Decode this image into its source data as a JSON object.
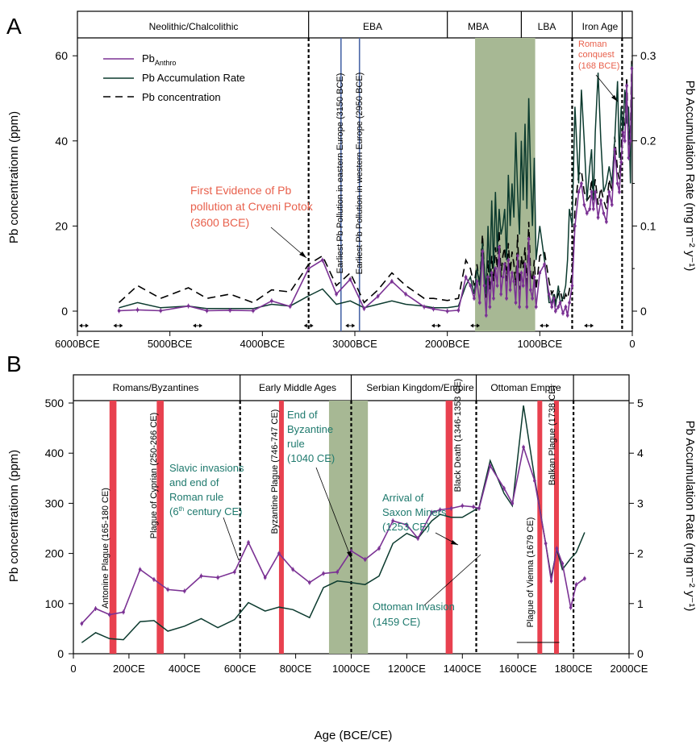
{
  "colors": {
    "pb_anthro": "#7b3294",
    "accumulation": "#0b3a2e",
    "concentration": "#000000",
    "red_band": "#e8414f",
    "green_band": "#a7b894",
    "annotation_orange": "#e8604c",
    "annotation_teal": "#1f7a6e",
    "blue_line": "#4a67a8"
  },
  "panel_a": {
    "letter": "A",
    "periods": [
      "Neolithic/Chalcolithic",
      "EBA",
      "MBA",
      "LBA",
      "Iron Age"
    ],
    "ylabel_left": "Pb concentrationn (ppm)",
    "ylabel_right": "Pb Accumulation Rate (mg m⁻² y⁻¹)",
    "y_ticks_left": [
      "0",
      "20",
      "40",
      "60"
    ],
    "y_ticks_right": [
      "0",
      "0.1",
      "0.2",
      "0.3"
    ],
    "x_ticks": [
      "6000BCE",
      "5000BCE",
      "4000BCE",
      "3000BCE",
      "2000BCE",
      "1000BCE",
      "0"
    ],
    "legend": {
      "pb_anthro": "Pb",
      "pb_anthro_sub": "Anthro",
      "accumulation": "Pb Accumulation Rate",
      "concentration": "Pb concentration"
    },
    "annotations": {
      "first_evidence": [
        "First Evidence of Pb",
        "pollution at Crveni Potok",
        "(3600 BCE)"
      ],
      "roman": [
        "Roman",
        "conquest",
        "(168 BCE)"
      ],
      "eastern": "Earliest Pb Pollution in eastern Europe (3150 BCE)",
      "western": "Earliest Pb Pollution in western Europe (2950 BCE)"
    }
  },
  "panel_b": {
    "letter": "B",
    "periods": [
      "Romans/Byzantines",
      "Early Middle Ages",
      "Serbian Kingdom/Empire",
      "Ottoman Empire"
    ],
    "ylabel_left": "Pb concentrationn (ppm)",
    "ylabel_right": "Pb Accumulation Rate (mg m⁻² y⁻¹)",
    "xlabel": "Age (BCE/CE)",
    "y_ticks_left": [
      "0",
      "100",
      "200",
      "300",
      "400",
      "500"
    ],
    "y_ticks_right": [
      "0",
      "1",
      "2",
      "3",
      "4",
      "5"
    ],
    "x_ticks": [
      "0",
      "200CE",
      "400CE",
      "600CE",
      "800CE",
      "1000CE",
      "1200CE",
      "1400CE",
      "1600CE",
      "1800CE",
      "2000CE"
    ],
    "plague_labels": {
      "antonine": "Antonine Plague (165-180 CE)",
      "cyprian": "Plague of Cyprian (250-266 CE)",
      "byzantine": "Byzantine Plague (746-747 CE)",
      "black_death": "Black Death (1346-1353 CE)",
      "vienna": "Plague of Vienna (1679 CE)",
      "balkan": "Balkan Plague (1738 CE)"
    },
    "annotations": {
      "slavic": [
        "Slavic invasions",
        "and end of",
        "Roman rule",
        "century CE)"
      ],
      "slavic_paren": "(6",
      "slavic_sup": "th",
      "byzantine_end": [
        "End of",
        "Byzantine",
        "rule",
        "(1040 CE)"
      ],
      "saxon": [
        "Arrival of",
        "Saxon Miners",
        "(1253 CE)"
      ],
      "ottoman": [
        "Ottoman Invasion",
        "(1459 CE)"
      ]
    }
  },
  "chart_data": [
    {
      "type": "line",
      "panel": "A",
      "x_unit": "year (negative = BCE)",
      "xlim": [
        -6000,
        0
      ],
      "ylim_left": [
        -5,
        65
      ],
      "ylim_right": [
        -0.025,
        0.325
      ],
      "period_boundaries": [
        -3500,
        -2000,
        -1200,
        -650,
        -110
      ],
      "vertical_markers": {
        "dashed": [
          -3500,
          -650,
          -110
        ],
        "blue_solid": [
          -3150,
          -2950
        ]
      },
      "shaded_interval": [
        -1700,
        -1050
      ],
      "series": [
        {
          "name": "Pb",
          "axis": "left",
          "x": [
            -5550,
            -5350,
            -5100,
            -4800,
            -4600,
            -4350,
            -4100,
            -3900,
            -3700,
            -3500,
            -3350,
            -3200,
            -3050,
            -2900,
            -2750,
            -2600,
            -2450,
            -2250,
            -2150,
            -2000,
            -1880,
            -1800,
            -1750,
            -1710,
            -1680,
            -1650,
            -1620,
            -1600,
            -1580,
            -1560,
            -1540,
            -1520,
            -1500,
            -1480,
            -1460,
            -1440,
            -1420,
            -1400,
            -1380,
            -1360,
            -1340,
            -1320,
            -1300,
            -1280,
            -1260,
            -1240,
            -1220,
            -1200,
            -1180,
            -1160,
            -1140,
            -1120,
            -1100,
            -1080,
            -1060,
            -1040,
            -1000,
            -950,
            -900,
            -870,
            -850,
            -830,
            -800,
            -780,
            -750,
            -720,
            -700,
            -680,
            -650,
            -620,
            -580,
            -550,
            -520,
            -490,
            -460,
            -440,
            -420,
            -400,
            -370,
            -340,
            -310,
            -280,
            -250,
            -220,
            -190,
            -160,
            -140,
            -120,
            -100,
            -80,
            -60,
            -40,
            -20,
            -5
          ],
          "values": [
            0.1,
            0.3,
            0.1,
            1.2,
            0.1,
            0.2,
            0.1,
            2.4,
            1.1,
            10,
            12,
            4,
            7.5,
            0.6,
            3.5,
            7,
            4,
            1,
            0.5,
            0,
            0.2,
            8,
            6,
            3,
            7,
            2,
            14,
            6,
            -1,
            8,
            1,
            9,
            3,
            10,
            6,
            15,
            4,
            8,
            11,
            3,
            12,
            5,
            9,
            7,
            2,
            13,
            1,
            9,
            6,
            11,
            1,
            17,
            5,
            3,
            8,
            1,
            9,
            11,
            4,
            1,
            3,
            0,
            1,
            2,
            -0.5,
            1,
            -1,
            2,
            6,
            20,
            28,
            30,
            25,
            23,
            24,
            28,
            24,
            28,
            22,
            26,
            23,
            21,
            28,
            25,
            38,
            30,
            28,
            35,
            42,
            40,
            53,
            36,
            40,
            57
          ]
        },
        {
          "name": "Pb Accumulation Rate",
          "axis": "right",
          "x": [
            -5550,
            -5350,
            -5100,
            -4800,
            -4600,
            -4350,
            -4100,
            -3900,
            -3700,
            -3500,
            -3350,
            -3200,
            -3050,
            -2900,
            -2750,
            -2600,
            -2450,
            -2250,
            -2150,
            -2000,
            -1880,
            -1800,
            -1750,
            -1710,
            -1680,
            -1650,
            -1620,
            -1600,
            -1580,
            -1560,
            -1540,
            -1520,
            -1500,
            -1480,
            -1460,
            -1440,
            -1420,
            -1400,
            -1380,
            -1360,
            -1340,
            -1320,
            -1300,
            -1280,
            -1260,
            -1240,
            -1220,
            -1200,
            -1180,
            -1160,
            -1140,
            -1120,
            -1100,
            -1080,
            -1060,
            -1040,
            -1000,
            -950,
            -900,
            -870,
            -850,
            -830,
            -800,
            -780,
            -750,
            -720,
            -700,
            -680,
            -650,
            -620,
            -580,
            -550,
            -520,
            -490,
            -460,
            -440,
            -420,
            -400,
            -370,
            -340,
            -310,
            -280,
            -250,
            -220,
            -190,
            -160,
            -140,
            -120,
            -100,
            -80,
            -60,
            -40,
            -20,
            -5
          ],
          "values": [
            0.004,
            0.01,
            0.004,
            0.006,
            0.003,
            0.003,
            0.003,
            0.008,
            0.006,
            0.018,
            0.026,
            0.008,
            0.012,
            0.004,
            0.008,
            0.012,
            0.008,
            0.006,
            0.004,
            0.004,
            0.006,
            0.03,
            0.04,
            0.02,
            0.05,
            0.03,
            0.08,
            0.05,
            0.02,
            0.1,
            0.04,
            0.13,
            0.05,
            0.14,
            0.07,
            0.12,
            0.09,
            0.1,
            0.12,
            0.06,
            0.16,
            0.1,
            0.15,
            0.11,
            0.21,
            0.14,
            0.09,
            0.2,
            0.13,
            0.22,
            0.12,
            0.25,
            0.16,
            0.1,
            0.18,
            0.06,
            0.1,
            0.06,
            0.01,
            0.01,
            0.02,
            0.005,
            0.03,
            0.01,
            0.015,
            0.03,
            0.06,
            0.12,
            0.1,
            0.24,
            0.15,
            0.26,
            0.2,
            0.13,
            0.17,
            0.19,
            0.13,
            0.21,
            0.28,
            0.2,
            0.14,
            0.15,
            0.17,
            0.15,
            0.2,
            0.27,
            0.18,
            0.24,
            0.21,
            0.26,
            0.22,
            0.24,
            0.15,
            0.29
          ]
        },
        {
          "name": "Pb concentration",
          "axis": "left",
          "x": [
            -5550,
            -5350,
            -5100,
            -4800,
            -4600,
            -4350,
            -4100,
            -3900,
            -3700,
            -3500,
            -3350,
            -3200,
            -3050,
            -2900,
            -2750,
            -2600,
            -2450,
            -2250,
            -2150,
            -2000,
            -1880,
            -1800,
            -1750,
            -1710,
            -1680,
            -1650,
            -1620,
            -1600,
            -1580,
            -1560,
            -1540,
            -1520,
            -1500,
            -1480,
            -1460,
            -1440,
            -1420,
            -1400,
            -1380,
            -1360,
            -1340,
            -1320,
            -1300,
            -1280,
            -1260,
            -1240,
            -1220,
            -1200,
            -1180,
            -1160,
            -1140,
            -1120,
            -1100,
            -1080,
            -1060,
            -1040,
            -1000,
            -950,
            -900,
            -870,
            -850,
            -830,
            -800,
            -780,
            -750,
            -720,
            -700,
            -680,
            -650,
            -620,
            -580,
            -550,
            -520,
            -490,
            -460,
            -440,
            -420,
            -400,
            -370,
            -340,
            -310,
            -280,
            -250,
            -220,
            -190,
            -160,
            -140,
            -120,
            -100,
            -80,
            -60,
            -40,
            -20,
            -5
          ],
          "values": [
            2,
            6,
            3,
            5.5,
            3,
            4,
            2,
            5,
            4.5,
            11,
            13,
            6,
            9,
            2,
            5,
            9,
            6,
            3,
            3,
            2.5,
            3,
            12,
            10,
            6,
            11,
            6,
            18,
            10,
            3,
            12,
            5,
            13,
            7,
            15,
            10,
            19,
            8,
            13,
            15,
            7,
            16,
            9,
            14,
            11,
            6,
            18,
            5,
            13,
            10,
            15,
            5,
            21,
            9,
            7,
            12,
            5,
            13,
            14,
            7,
            4,
            5,
            2,
            4,
            5,
            2,
            4,
            3,
            5,
            9,
            24,
            32,
            33,
            28,
            26,
            27,
            31,
            27,
            31,
            25,
            29,
            26,
            24,
            31,
            28,
            41,
            33,
            31,
            38,
            45,
            43,
            55,
            39,
            43,
            60
          ]
        }
      ]
    },
    {
      "type": "line",
      "panel": "B",
      "x_unit": "year CE",
      "xlim": [
        0,
        2000
      ],
      "ylim_left": [
        0,
        500
      ],
      "ylim_right": [
        0,
        5
      ],
      "period_boundaries": [
        600,
        1000,
        1450,
        1800
      ],
      "vertical_markers": {
        "dashed": [
          600,
          1000,
          1450,
          1800
        ]
      },
      "shaded_interval": [
        920,
        1060
      ],
      "red_bands": [
        [
          130,
          155
        ],
        [
          300,
          325
        ],
        [
          740,
          755
        ],
        [
          1340,
          1365
        ],
        [
          1670,
          1685
        ],
        [
          1730,
          1745
        ]
      ],
      "series": [
        {
          "name": "Pb",
          "axis": "left",
          "x": [
            30,
            80,
            130,
            180,
            240,
            290,
            340,
            400,
            460,
            520,
            580,
            630,
            690,
            740,
            790,
            850,
            900,
            950,
            1000,
            1050,
            1100,
            1150,
            1200,
            1240,
            1290,
            1320,
            1360,
            1400,
            1440,
            1460,
            1500,
            1550,
            1580,
            1620,
            1660,
            1700,
            1720,
            1740,
            1760,
            1790,
            1810,
            1840
          ],
          "values": [
            60,
            90,
            78,
            83,
            168,
            148,
            128,
            125,
            155,
            152,
            163,
            222,
            152,
            200,
            168,
            142,
            160,
            163,
            205,
            188,
            210,
            265,
            257,
            230,
            282,
            287,
            290,
            295,
            293,
            290,
            375,
            330,
            300,
            412,
            345,
            220,
            145,
            210,
            180,
            92,
            138,
            150
          ]
        },
        {
          "name": "Pb Accumulation Rate",
          "axis": "right",
          "x": [
            30,
            80,
            130,
            180,
            240,
            290,
            340,
            400,
            460,
            520,
            580,
            630,
            690,
            740,
            790,
            850,
            900,
            950,
            1000,
            1050,
            1100,
            1150,
            1200,
            1240,
            1290,
            1320,
            1360,
            1400,
            1440,
            1460,
            1500,
            1550,
            1580,
            1620,
            1660,
            1700,
            1720,
            1740,
            1760,
            1790,
            1810,
            1840
          ],
          "values": [
            0.22,
            0.42,
            0.3,
            0.28,
            0.64,
            0.66,
            0.45,
            0.55,
            0.7,
            0.52,
            0.68,
            1.02,
            0.85,
            0.93,
            0.88,
            0.72,
            1.32,
            1.45,
            1.42,
            1.38,
            1.55,
            2.2,
            2.4,
            2.3,
            2.65,
            2.78,
            2.72,
            2.72,
            2.85,
            2.92,
            3.85,
            3.2,
            2.95,
            4.95,
            3.5,
            2.2,
            1.52,
            2.08,
            1.68,
            1.9,
            2.02,
            2.42
          ]
        }
      ]
    }
  ]
}
